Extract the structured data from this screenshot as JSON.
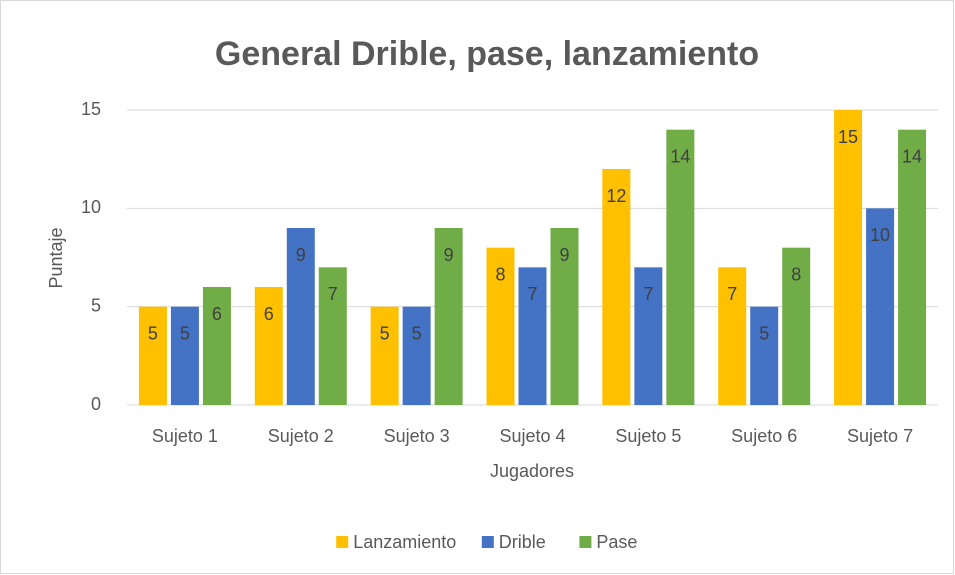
{
  "chart_data": {
    "type": "bar",
    "title": "General Drible, pase, lanzamiento",
    "x_label": "Jugadores",
    "y_label": "Puntaje",
    "categories": [
      "Sujeto 1",
      "Sujeto 2",
      "Sujeto 3",
      "Sujeto 4",
      "Sujeto 5",
      "Sujeto 6",
      "Sujeto 7"
    ],
    "series": [
      {
        "name": "Lanzamiento",
        "color": "#ffc000",
        "values": [
          5,
          6,
          5,
          8,
          12,
          7,
          15
        ]
      },
      {
        "name": "Drible",
        "color": "#4472c4",
        "values": [
          5,
          9,
          5,
          7,
          7,
          5,
          10
        ]
      },
      {
        "name": "Pase",
        "color": "#70ad47",
        "values": [
          6,
          7,
          9,
          9,
          14,
          8,
          14
        ]
      }
    ],
    "ylim": [
      0,
      15
    ],
    "yticks": [
      0,
      5,
      10,
      15
    ],
    "grid": true,
    "legend": "bottom"
  }
}
